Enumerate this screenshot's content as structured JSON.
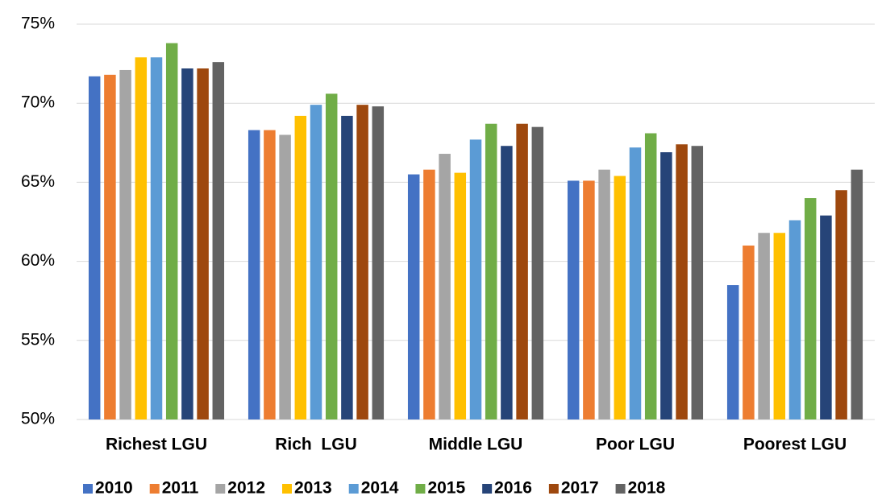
{
  "chart_data": {
    "type": "bar",
    "categories": [
      "Richest LGU",
      "Rich  LGU",
      "Middle LGU",
      "Poor LGU",
      "Poorest LGU"
    ],
    "series": [
      {
        "name": "2010",
        "color": "#4472c4",
        "values": [
          71.7,
          68.3,
          65.5,
          65.1,
          58.5
        ]
      },
      {
        "name": "2011",
        "color": "#ed7d31",
        "values": [
          71.8,
          68.3,
          65.8,
          65.1,
          61.0
        ]
      },
      {
        "name": "2012",
        "color": "#a5a5a5",
        "values": [
          72.1,
          68.0,
          66.8,
          65.8,
          61.8
        ]
      },
      {
        "name": "2013",
        "color": "#ffc000",
        "values": [
          72.9,
          69.2,
          65.6,
          65.4,
          61.8
        ]
      },
      {
        "name": "2014",
        "color": "#5b9bd5",
        "values": [
          72.9,
          69.9,
          67.7,
          67.2,
          62.6
        ]
      },
      {
        "name": "2015",
        "color": "#70ad47",
        "values": [
          73.8,
          70.6,
          68.7,
          68.1,
          64.0
        ]
      },
      {
        "name": "2016",
        "color": "#264478",
        "values": [
          72.2,
          69.2,
          67.3,
          66.9,
          62.9
        ]
      },
      {
        "name": "2017",
        "color": "#9e480e",
        "values": [
          72.2,
          69.9,
          68.7,
          67.4,
          64.5
        ]
      },
      {
        "name": "2018",
        "color": "#636363",
        "values": [
          72.6,
          69.8,
          68.5,
          67.3,
          65.8
        ]
      }
    ],
    "ylim": [
      50,
      75
    ],
    "yticks": [
      {
        "value": 50,
        "label": "50%"
      },
      {
        "value": 55,
        "label": "55%"
      },
      {
        "value": 60,
        "label": "60%"
      },
      {
        "value": 65,
        "label": "65%"
      },
      {
        "value": 70,
        "label": "70%"
      },
      {
        "value": 75,
        "label": "75%"
      }
    ],
    "grid": true,
    "legend": "bottom"
  }
}
